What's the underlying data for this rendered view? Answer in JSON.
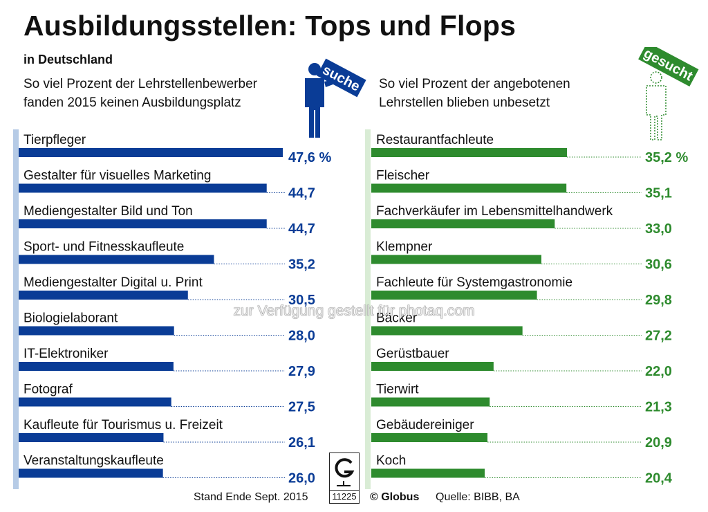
{
  "header": {
    "title": "Ausbildungsstellen: Tops und Flops",
    "subtitle": "in Deutschland"
  },
  "left_panel": {
    "description_line1": "So viel Prozent der Lehrstellenbewerber",
    "description_line2": "fanden 2015 keinen Ausbildungsplatz",
    "icon_sign": "suche",
    "color": "#0a3c96"
  },
  "right_panel": {
    "description_line1": "So viel Prozent der angebotenen",
    "description_line2": "Lehrstellen blieben unbesetzt",
    "icon_sign": "gesucht",
    "color": "#2e8b2e"
  },
  "chart_data": [
    {
      "type": "bar",
      "orientation": "horizontal",
      "categories": [
        "Tierpfleger",
        "Gestalter für visuelles Marketing",
        "Mediengestalter Bild und Ton",
        "Sport- und Fitnesskaufleute",
        "Mediengestalter Digital u. Print",
        "Biologielaborant",
        "IT-Elektroniker",
        "Fotograf",
        "Kaufleute für Tourismus u. Freizeit",
        "Veranstaltungskaufleute"
      ],
      "values": [
        47.6,
        44.7,
        44.7,
        35.2,
        30.5,
        28.0,
        27.9,
        27.5,
        26.1,
        26.0
      ],
      "value_labels": [
        "47,6 %",
        "44,7",
        "44,7",
        "35,2",
        "30,5",
        "28,0",
        "27,9",
        "27,5",
        "26,1",
        "26,0"
      ],
      "xlim": [
        0,
        47.6
      ],
      "color": "#0a3c96"
    },
    {
      "type": "bar",
      "orientation": "horizontal",
      "categories": [
        "Restaurantfachleute",
        "Fleischer",
        "Fachverkäufer im Lebensmittelhandwerk",
        "Klempner",
        "Fachleute für Systemgastronomie",
        "Bäcker",
        "Gerüstbauer",
        "Tierwirt",
        "Gebäudereiniger",
        "Koch"
      ],
      "values": [
        35.2,
        35.1,
        33.0,
        30.6,
        29.8,
        27.2,
        22.0,
        21.3,
        20.9,
        20.4
      ],
      "value_labels": [
        "35,2 %",
        "35,1",
        "33,0",
        "30,6",
        "29,8",
        "27,2",
        "22,0",
        "21,3",
        "20,9",
        "20,4"
      ],
      "xlim": [
        0,
        35.2
      ],
      "color": "#2e8b2e"
    }
  ],
  "footer": {
    "stand": "Stand Ende Sept. 2015",
    "globus": "© Globus",
    "quelle": "Quelle:  BIBB, BA",
    "logo_number": "11225"
  },
  "watermark": "zur Verfügung gestellt für photaq.com"
}
